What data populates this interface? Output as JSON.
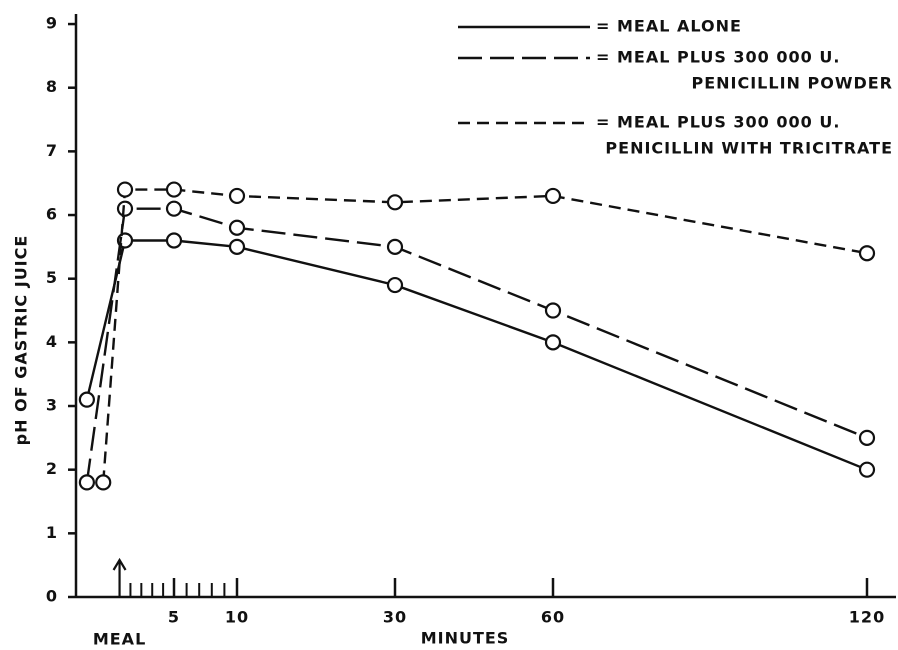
{
  "chart_data": {
    "type": "line",
    "y_label": "pH OF GASTRIC JUICE",
    "x_label": "MINUTES",
    "annotation": {
      "text": "MEAL",
      "x": 0
    },
    "xlim": [
      -4,
      125
    ],
    "xticks": [
      5,
      10,
      30,
      60,
      120
    ],
    "xminorticks": [
      1,
      2,
      3,
      4,
      6,
      7,
      8,
      9
    ],
    "ylim": [
      0,
      9.15
    ],
    "yticks": [
      0,
      1,
      2,
      3,
      4,
      5,
      6,
      7,
      8,
      9
    ],
    "legend": "top-right",
    "series": [
      {
        "name": [
          "= MEAL ALONE"
        ],
        "color": "#111111",
        "line_style": "solid",
        "x": [
          -3,
          0.5,
          5,
          10,
          30,
          60,
          120
        ],
        "values": [
          3.1,
          5.6,
          5.6,
          5.5,
          4.9,
          4.0,
          2.0
        ]
      },
      {
        "name": [
          "= MEAL PLUS 300 000 U.",
          "PENICILLIN POWDER"
        ],
        "color": "#111111",
        "line_style": "long-dash",
        "x": [
          -3,
          0.5,
          5,
          10,
          30,
          60,
          120
        ],
        "values": [
          1.8,
          6.1,
          6.1,
          5.8,
          5.5,
          4.5,
          2.5
        ]
      },
      {
        "name": [
          "= MEAL PLUS 300 000 U.",
          "PENICILLIN WITH TRICITRATE"
        ],
        "color": "#111111",
        "line_style": "short-dash",
        "x": [
          -1.5,
          0.5,
          5,
          10,
          30,
          60,
          120
        ],
        "values": [
          1.8,
          6.4,
          6.4,
          6.3,
          6.2,
          6.3,
          5.4
        ]
      }
    ]
  }
}
